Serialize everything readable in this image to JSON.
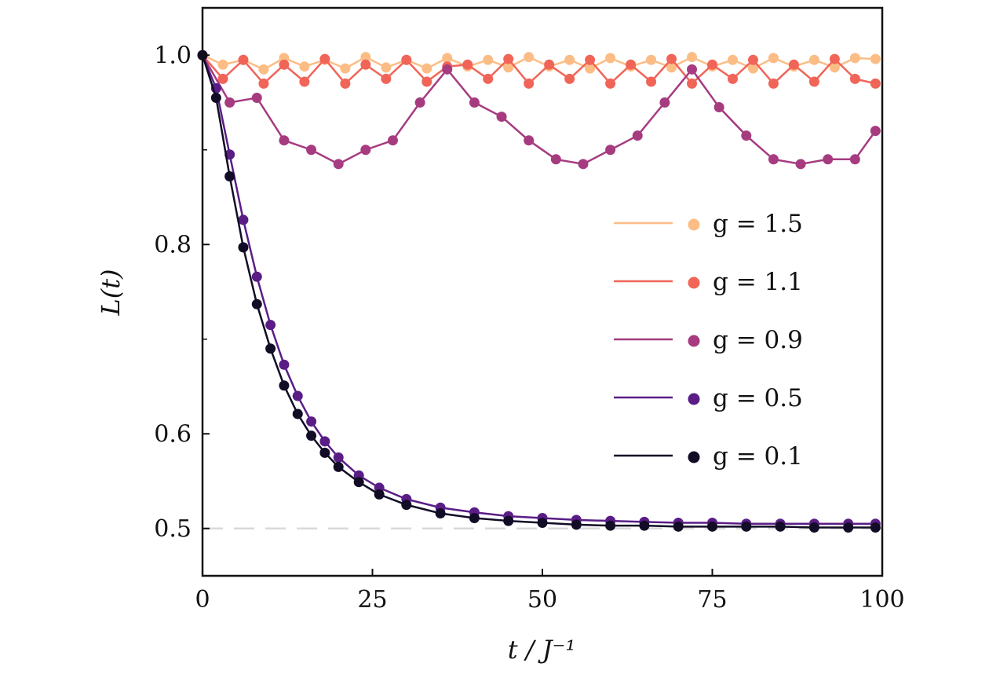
{
  "chart_data": {
    "type": "line",
    "xlabel": "t / J⁻¹",
    "ylabel": "L(t)",
    "xlim": [
      0,
      100
    ],
    "ylim": [
      0.45,
      1.05
    ],
    "xticks": [
      "0",
      "25",
      "50",
      "75",
      "100"
    ],
    "yticks": [
      "0.5",
      "0.6",
      "0.8",
      "1.0"
    ],
    "reference_line": {
      "y": 0.5,
      "style": "dashed",
      "color": "#d9d9d9"
    },
    "legend_placement": "center-right",
    "grid": false,
    "series": [
      {
        "name": "g = 1.5",
        "color": "#fbbd85",
        "x": [
          0,
          3,
          6,
          9,
          12,
          15,
          18,
          21,
          24,
          27,
          30,
          33,
          36,
          39,
          42,
          45,
          48,
          51,
          54,
          57,
          60,
          63,
          66,
          69,
          72,
          75,
          78,
          81,
          84,
          87,
          90,
          93,
          96,
          99
        ],
        "y": [
          1.0,
          0.99,
          0.995,
          0.985,
          0.997,
          0.988,
          0.995,
          0.986,
          0.998,
          0.987,
          0.995,
          0.986,
          0.997,
          0.988,
          0.995,
          0.987,
          0.998,
          0.988,
          0.995,
          0.986,
          0.997,
          0.988,
          0.995,
          0.987,
          0.998,
          0.988,
          0.995,
          0.986,
          0.997,
          0.988,
          0.995,
          0.987,
          0.997,
          0.996
        ]
      },
      {
        "name": "g = 1.1",
        "color": "#f06558",
        "x": [
          0,
          3,
          6,
          9,
          12,
          15,
          18,
          21,
          24,
          27,
          30,
          33,
          36,
          39,
          42,
          45,
          48,
          51,
          54,
          57,
          60,
          63,
          66,
          69,
          72,
          75,
          78,
          81,
          84,
          87,
          90,
          93,
          96,
          99
        ],
        "y": [
          1.0,
          0.975,
          0.995,
          0.97,
          0.99,
          0.972,
          0.996,
          0.97,
          0.99,
          0.975,
          0.995,
          0.972,
          0.988,
          0.99,
          0.975,
          0.996,
          0.97,
          0.99,
          0.975,
          0.995,
          0.97,
          0.99,
          0.972,
          0.996,
          0.97,
          0.99,
          0.975,
          0.995,
          0.97,
          0.99,
          0.972,
          0.996,
          0.975,
          0.97
        ]
      },
      {
        "name": "g = 0.9",
        "color": "#a63b80",
        "x": [
          0,
          4,
          8,
          12,
          16,
          20,
          24,
          28,
          32,
          36,
          40,
          44,
          48,
          52,
          56,
          60,
          64,
          68,
          72,
          76,
          80,
          84,
          88,
          92,
          96,
          99
        ],
        "y": [
          1.0,
          0.95,
          0.955,
          0.91,
          0.9,
          0.885,
          0.9,
          0.91,
          0.95,
          0.985,
          0.95,
          0.935,
          0.91,
          0.89,
          0.885,
          0.9,
          0.915,
          0.95,
          0.985,
          0.945,
          0.915,
          0.89,
          0.885,
          0.89,
          0.89,
          0.92
        ]
      },
      {
        "name": "g = 0.5",
        "color": "#5a1d86",
        "x": [
          0,
          2,
          4,
          6,
          8,
          10,
          12,
          14,
          16,
          18,
          20,
          23,
          26,
          30,
          35,
          40,
          45,
          50,
          55,
          60,
          65,
          70,
          75,
          80,
          85,
          90,
          95,
          99
        ],
        "y": [
          1.0,
          0.965,
          0.895,
          0.826,
          0.766,
          0.715,
          0.673,
          0.64,
          0.613,
          0.592,
          0.575,
          0.556,
          0.543,
          0.531,
          0.522,
          0.517,
          0.513,
          0.511,
          0.509,
          0.508,
          0.507,
          0.506,
          0.506,
          0.505,
          0.505,
          0.505,
          0.505,
          0.505
        ]
      },
      {
        "name": "g = 0.1",
        "color": "#120c26",
        "x": [
          0,
          2,
          4,
          6,
          8,
          10,
          12,
          14,
          16,
          18,
          20,
          23,
          26,
          30,
          35,
          40,
          45,
          50,
          55,
          60,
          65,
          70,
          75,
          80,
          85,
          90,
          95,
          99
        ],
        "y": [
          1.0,
          0.955,
          0.872,
          0.797,
          0.737,
          0.69,
          0.651,
          0.621,
          0.598,
          0.58,
          0.565,
          0.549,
          0.536,
          0.525,
          0.516,
          0.511,
          0.508,
          0.506,
          0.504,
          0.503,
          0.503,
          0.502,
          0.502,
          0.502,
          0.502,
          0.501,
          0.501,
          0.501
        ]
      }
    ]
  }
}
